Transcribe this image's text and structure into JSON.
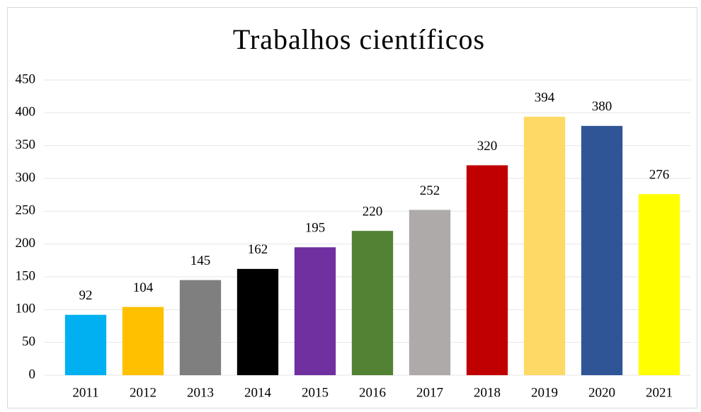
{
  "chart_data": {
    "type": "bar",
    "title": "Trabalhos científicos",
    "categories": [
      "2011",
      "2012",
      "2013",
      "2014",
      "2015",
      "2016",
      "2017",
      "2018",
      "2019",
      "2020",
      "2021"
    ],
    "values": [
      92,
      104,
      145,
      162,
      195,
      220,
      252,
      320,
      394,
      380,
      276
    ],
    "colors": [
      "#00b0f0",
      "#ffc000",
      "#7f7f7f",
      "#000000",
      "#7030a0",
      "#548235",
      "#aeaaaa",
      "#c00000",
      "#ffd966",
      "#2f5597",
      "#ffff00"
    ],
    "ylim": [
      0,
      450
    ],
    "yticks": [
      0,
      50,
      100,
      150,
      200,
      250,
      300,
      350,
      400,
      450
    ],
    "grid": true,
    "data_labels": true
  }
}
